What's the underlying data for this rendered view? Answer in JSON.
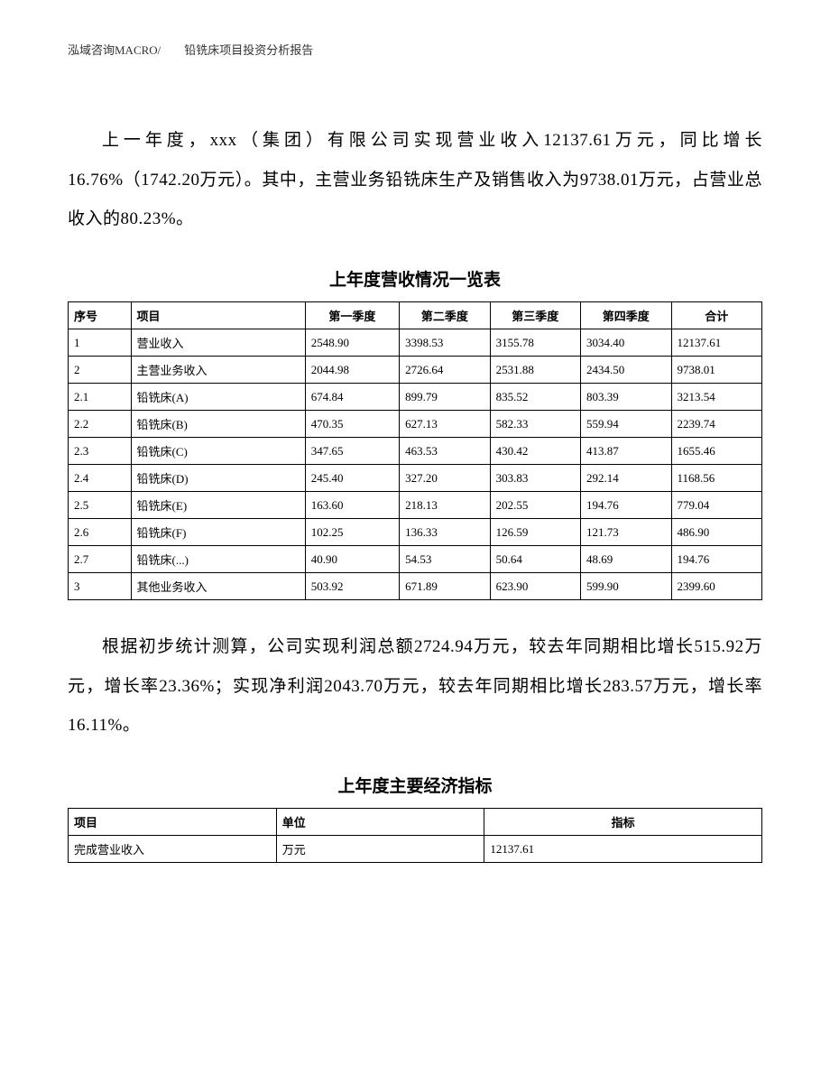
{
  "header": "泓域咨询MACRO/　　铅铣床项目投资分析报告",
  "paragraph1": "上一年度，xxx（集团）有限公司实现营业收入12137.61万元，同比增长16.76%（1742.20万元）。其中，主营业务铅铣床生产及销售收入为9738.01万元，占营业总收入的80.23%。",
  "table1": {
    "title": "上年度营收情况一览表",
    "columns": [
      "序号",
      "项目",
      "第一季度",
      "第二季度",
      "第三季度",
      "第四季度",
      "合计"
    ],
    "rows": [
      [
        "1",
        "营业收入",
        "2548.90",
        "3398.53",
        "3155.78",
        "3034.40",
        "12137.61"
      ],
      [
        "2",
        "主营业务收入",
        "2044.98",
        "2726.64",
        "2531.88",
        "2434.50",
        "9738.01"
      ],
      [
        "2.1",
        "铅铣床(A)",
        "674.84",
        "899.79",
        "835.52",
        "803.39",
        "3213.54"
      ],
      [
        "2.2",
        "铅铣床(B)",
        "470.35",
        "627.13",
        "582.33",
        "559.94",
        "2239.74"
      ],
      [
        "2.3",
        "铅铣床(C)",
        "347.65",
        "463.53",
        "430.42",
        "413.87",
        "1655.46"
      ],
      [
        "2.4",
        "铅铣床(D)",
        "245.40",
        "327.20",
        "303.83",
        "292.14",
        "1168.56"
      ],
      [
        "2.5",
        "铅铣床(E)",
        "163.60",
        "218.13",
        "202.55",
        "194.76",
        "779.04"
      ],
      [
        "2.6",
        "铅铣床(F)",
        "102.25",
        "136.33",
        "126.59",
        "121.73",
        "486.90"
      ],
      [
        "2.7",
        "铅铣床(...)",
        "40.90",
        "54.53",
        "50.64",
        "48.69",
        "194.76"
      ],
      [
        "3",
        "其他业务收入",
        "503.92",
        "671.89",
        "623.90",
        "599.90",
        "2399.60"
      ]
    ]
  },
  "paragraph2": "根据初步统计测算，公司实现利润总额2724.94万元，较去年同期相比增长515.92万元，增长率23.36%；实现净利润2043.70万元，较去年同期相比增长283.57万元，增长率16.11%。",
  "table2": {
    "title": "上年度主要经济指标",
    "columns": [
      "项目",
      "单位",
      "指标"
    ],
    "rows": [
      [
        "完成营业收入",
        "万元",
        "12137.61"
      ]
    ]
  }
}
